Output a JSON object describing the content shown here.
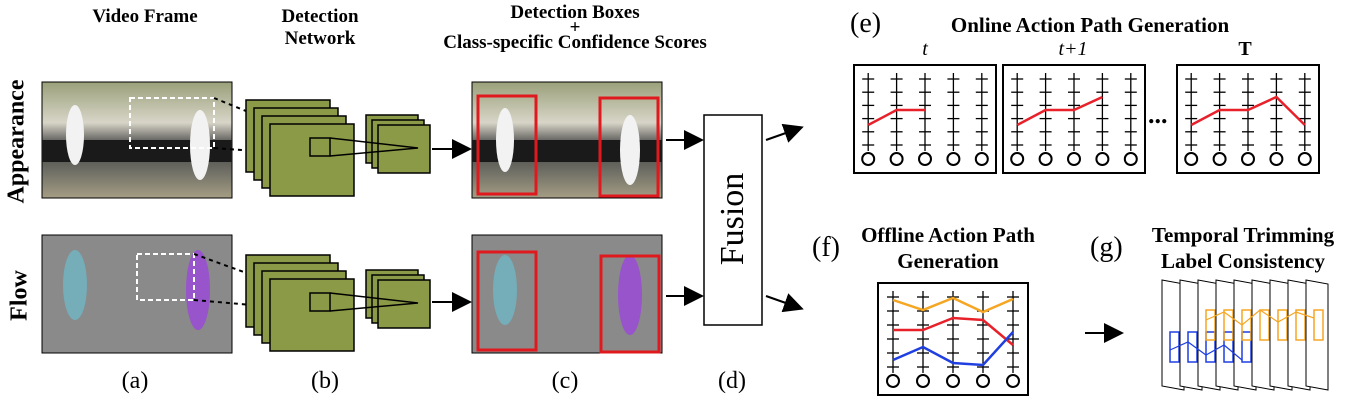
{
  "headers": {
    "video_frame": "Video Frame",
    "detection_network_1": "Detection",
    "detection_network_2": "Network",
    "boxes_1": "Detection Boxes",
    "boxes_plus": "+",
    "boxes_2": "Class-specific Confidence Scores"
  },
  "rows": {
    "appearance": "Appearance",
    "flow": "Flow"
  },
  "panel_labels": {
    "a": "(a)",
    "b": "(b)",
    "c": "(c)",
    "d": "(d)",
    "e": "(e)",
    "f": "(f)",
    "g": "(g)"
  },
  "fusion": "Fusion",
  "online": {
    "title": "Online Action Path Generation",
    "t": "t",
    "t1": "t+1",
    "T": "T",
    "dots": "..."
  },
  "offline": {
    "title_1": "Offline Action Path",
    "title_2": "Generation"
  },
  "trimming": {
    "title_1": "Temporal Trimming",
    "title_2": "Label Consistency"
  },
  "colors": {
    "box_red": "#e0191e",
    "cnn_green": "#8b9a47",
    "path_red": "#e8202a",
    "path_orange": "#f5a623",
    "path_blue": "#1f3fe0",
    "flow_gray": "#8a8a8a"
  }
}
